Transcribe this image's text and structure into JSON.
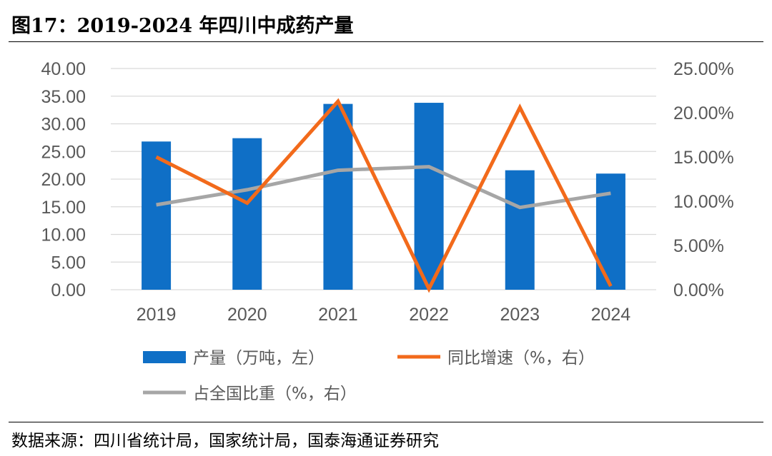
{
  "title": "图17：2019-2024 年四川中成药产量",
  "source": "数据来源：四川省统计局，国家统计局，国泰海通证券研究",
  "colors": {
    "bar": "#0F6FC6",
    "growth": "#F26A1B",
    "share": "#A6A6A6",
    "grid": "#D9D9D9",
    "tick": "#595959"
  },
  "chart_data": {
    "type": "bar",
    "categories": [
      "2019",
      "2020",
      "2021",
      "2022",
      "2023",
      "2024"
    ],
    "series": [
      {
        "name": "产量（万吨，左）",
        "type": "bar",
        "axis": "left",
        "values": [
          26.8,
          27.4,
          33.6,
          33.8,
          21.6,
          21.0
        ]
      },
      {
        "name": "同比增速（%，右）",
        "type": "line",
        "axis": "right",
        "values": [
          15.0,
          9.8,
          21.3,
          0.1,
          20.6,
          0.4
        ]
      },
      {
        "name": "占全国比重（%，右）",
        "type": "line",
        "axis": "right",
        "values": [
          9.6,
          11.3,
          13.5,
          13.9,
          9.3,
          10.9
        ]
      }
    ],
    "left_axis": {
      "ylim": [
        0,
        40
      ],
      "ticks": [
        "0.00",
        "5.00",
        "10.00",
        "15.00",
        "20.00",
        "25.00",
        "30.00",
        "35.00",
        "40.00"
      ]
    },
    "right_axis": {
      "ylim": [
        0,
        25
      ],
      "ticks": [
        "0.00%",
        "5.00%",
        "10.00%",
        "15.00%",
        "20.00%",
        "25.00%"
      ]
    },
    "grid": true,
    "legend": "bottom"
  }
}
